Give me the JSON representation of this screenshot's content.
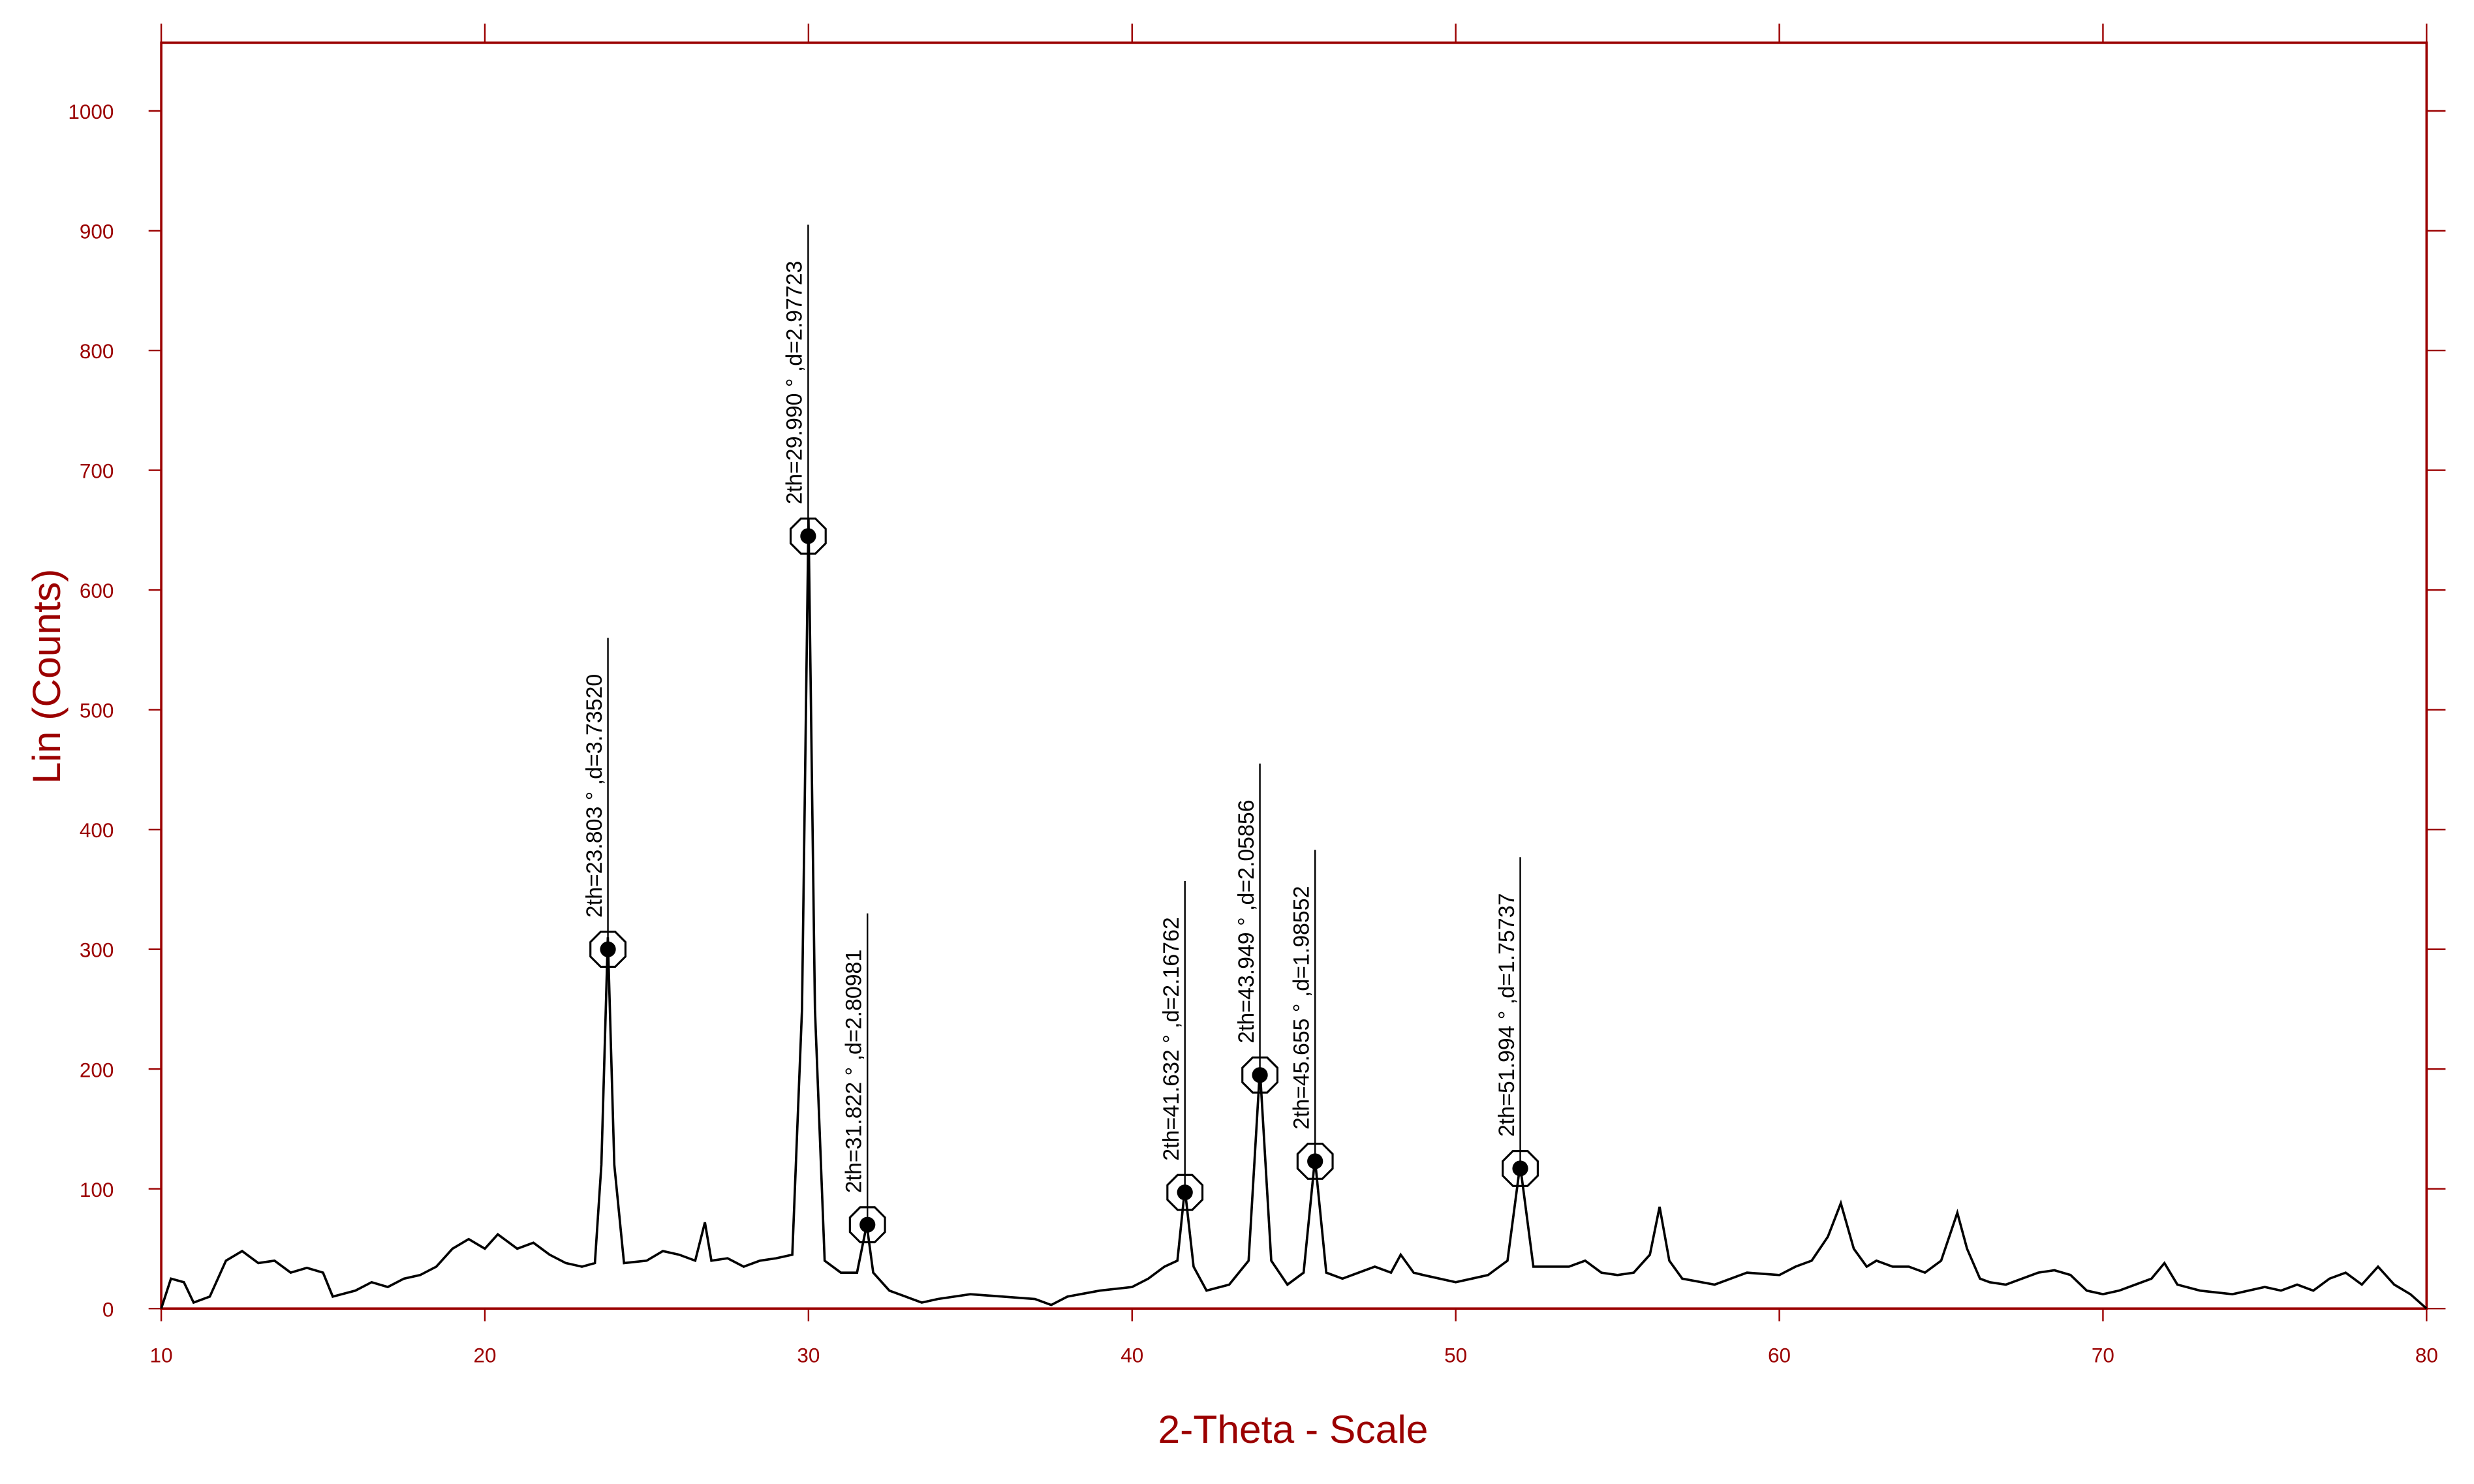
{
  "chart_data": {
    "type": "line",
    "xlabel": "2-Theta - Scale",
    "ylabel": "Lin (Counts)",
    "color": "#000000",
    "axis_color": "#9b0000",
    "xlim": [
      10,
      80
    ],
    "ylim": [
      0,
      1057
    ],
    "xticks": [
      10,
      20,
      30,
      40,
      50,
      60,
      70,
      80
    ],
    "yticks": [
      0,
      100,
      200,
      300,
      400,
      500,
      600,
      700,
      800,
      900,
      1000
    ],
    "x": [
      10,
      10.3,
      10.7,
      11,
      11.5,
      12,
      12.5,
      13,
      13.5,
      14,
      14.5,
      15,
      15.3,
      16,
      16.5,
      17,
      17.5,
      18,
      18.5,
      19,
      19.5,
      20,
      20.4,
      21,
      21.5,
      22,
      22.5,
      23,
      23.4,
      23.6,
      23.8,
      24.0,
      24.3,
      25,
      25.5,
      26,
      26.5,
      26.8,
      27,
      27.5,
      28,
      28.5,
      29,
      29.5,
      29.8,
      30.0,
      30.2,
      30.5,
      31,
      31.5,
      31.8,
      32,
      32.5,
      33,
      33.5,
      34,
      35,
      36,
      37,
      37.5,
      38,
      39,
      40,
      40.5,
      41,
      41.4,
      41.63,
      41.9,
      42.3,
      43,
      43.6,
      43.95,
      44.3,
      44.8,
      45.3,
      45.65,
      46,
      46.5,
      47,
      47.5,
      48,
      48.3,
      48.7,
      49,
      50,
      50.5,
      51,
      51.6,
      51.99,
      52.4,
      53,
      53.5,
      54,
      54.5,
      55,
      55.5,
      56,
      56.3,
      56.6,
      57,
      58,
      59,
      60,
      60.5,
      61,
      61.5,
      61.9,
      62.3,
      62.7,
      63,
      63.5,
      64,
      64.5,
      65,
      65.5,
      65.8,
      66.2,
      66.5,
      67,
      67.5,
      68,
      68.5,
      69,
      69.5,
      70,
      70.5,
      71,
      71.5,
      71.9,
      72.3,
      73,
      74,
      75,
      75.5,
      76,
      76.5,
      77,
      77.5,
      78,
      78.5,
      79,
      79.5,
      80
    ],
    "values": [
      0,
      25,
      22,
      5,
      10,
      40,
      48,
      38,
      40,
      30,
      34,
      30,
      10,
      15,
      22,
      18,
      25,
      28,
      35,
      50,
      58,
      50,
      62,
      50,
      55,
      45,
      38,
      35,
      38,
      120,
      310,
      120,
      38,
      40,
      48,
      45,
      40,
      72,
      40,
      42,
      35,
      40,
      42,
      45,
      250,
      660,
      250,
      40,
      30,
      30,
      70,
      30,
      15,
      10,
      5,
      8,
      12,
      10,
      8,
      3,
      10,
      15,
      18,
      25,
      35,
      40,
      100,
      35,
      15,
      20,
      40,
      200,
      40,
      20,
      30,
      125,
      30,
      25,
      30,
      35,
      30,
      45,
      30,
      28,
      22,
      25,
      28,
      40,
      120,
      35,
      35,
      35,
      40,
      30,
      28,
      30,
      45,
      85,
      40,
      25,
      20,
      30,
      28,
      35,
      40,
      60,
      88,
      50,
      35,
      40,
      35,
      35,
      30,
      40,
      80,
      50,
      25,
      22,
      20,
      25,
      30,
      32,
      28,
      15,
      12,
      15,
      20,
      25,
      38,
      20,
      15,
      12,
      18,
      15,
      20,
      15,
      25,
      30,
      20,
      35,
      20,
      12,
      0
    ],
    "annotations": [
      {
        "text": "2th=23.803 ° ,d=3.73520",
        "x": 23.803,
        "y": 300
      },
      {
        "text": "2th=29.990 ° ,d=2.97723",
        "x": 29.99,
        "y": 645
      },
      {
        "text": "2th=31.822 ° ,d=2.80981",
        "x": 31.822,
        "y": 70
      },
      {
        "text": "2th=41.632 ° ,d=2.16762",
        "x": 41.632,
        "y": 97
      },
      {
        "text": "2th=43.949 ° ,d=2.05856",
        "x": 43.949,
        "y": 195
      },
      {
        "text": "2th=45.655 ° ,d=1.98552",
        "x": 45.655,
        "y": 123
      },
      {
        "text": "2th=51.994 ° ,d=1.75737",
        "x": 51.994,
        "y": 117
      }
    ]
  }
}
